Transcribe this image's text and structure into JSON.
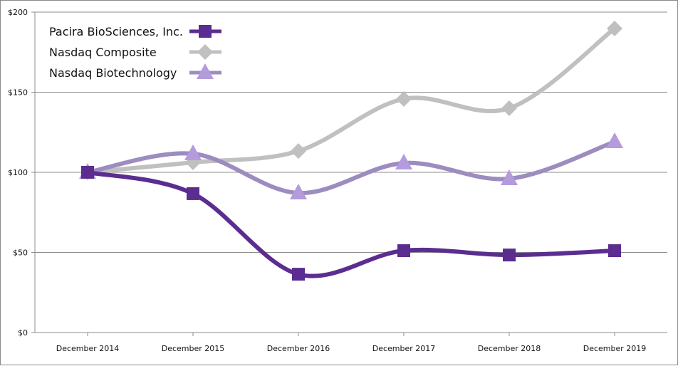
{
  "chart_data": {
    "type": "line",
    "title": "",
    "xlabel": "",
    "ylabel": "",
    "categories": [
      "December 2014",
      "December 2015",
      "December 2016",
      "December 2017",
      "December 2018",
      "December 2019"
    ],
    "ylim": [
      0,
      200
    ],
    "yticks": [
      0,
      50,
      100,
      150,
      200
    ],
    "ytick_labels": [
      "$0",
      "$50",
      "$100",
      "$150",
      "$200"
    ],
    "grid": "horizontal",
    "legend_position": "top-left",
    "smoothed": true,
    "series": [
      {
        "name": "Pacira BioSciences, Inc.",
        "values": [
          100,
          86.7,
          36.4,
          51.1,
          48.4,
          51.1
        ],
        "marker": "square",
        "line_color": "#5b2d90",
        "marker_color": "#5b2d90"
      },
      {
        "name": "Nasdaq Composite",
        "values": [
          100,
          106.2,
          113.3,
          145.8,
          140.0,
          189.8
        ],
        "marker": "diamond",
        "line_color": "#c0c0c0",
        "marker_color": "#c0c0c0"
      },
      {
        "name": "Nasdaq Biotechnology",
        "values": [
          100,
          111.6,
          87.1,
          105.8,
          96.0,
          119.1
        ],
        "marker": "triangle",
        "line_color": "#9d8cbf",
        "marker_color": "#b39bdc"
      }
    ]
  }
}
